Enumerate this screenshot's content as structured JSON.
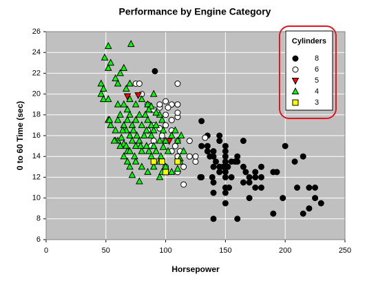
{
  "chart_data": {
    "type": "scatter",
    "title": "Performance by Engine Category",
    "x_label": "Horsepower",
    "y_label": "0 to 60 Time (sec)",
    "xlim": [
      0,
      250
    ],
    "xticks": [
      0,
      50,
      100,
      150,
      200,
      250
    ],
    "ylim": [
      6,
      26
    ],
    "yticks": [
      6,
      8,
      10,
      12,
      14,
      16,
      18,
      20,
      22,
      24,
      26
    ],
    "grid": true,
    "legend": "upper right",
    "legend_title": "Cylinders",
    "series": [
      {
        "name": "8",
        "color": "#000000",
        "marker": "circle",
        "x": [
          91,
          130,
          165,
          150,
          150,
          140,
          198,
          220,
          215,
          225,
          190,
          170,
          160,
          150,
          175,
          153,
          150,
          180,
          170,
          210,
          193,
          230,
          140,
          150,
          145,
          137,
          150,
          140,
          150,
          135,
          150,
          145,
          140,
          150,
          160,
          165,
          170,
          175,
          180,
          145,
          140,
          130,
          135,
          155,
          160,
          180,
          200,
          208,
          215,
          167,
          139,
          150,
          130,
          129,
          155,
          175,
          190,
          225,
          220,
          140,
          145,
          165,
          135,
          152,
          142,
          158,
          148
        ],
        "values": [
          22.2,
          12,
          11.5,
          11,
          12,
          10.5,
          10,
          9,
          8.5,
          10,
          8.5,
          10,
          8,
          9.5,
          11,
          11,
          10.5,
          11,
          11.5,
          11,
          12.5,
          9.5,
          8,
          12.5,
          13,
          14,
          13.5,
          14.5,
          14,
          15,
          15,
          16,
          14,
          13,
          13.5,
          13,
          12,
          12.5,
          13,
          12.5,
          13,
          15,
          14.5,
          12,
          14,
          12,
          15,
          13.5,
          14,
          12.5,
          12,
          14.5,
          17.4,
          12,
          13.5,
          12,
          12.5,
          11,
          11,
          11.5,
          15.5,
          15.5,
          16,
          13,
          13.5,
          13.5,
          13
        ]
      },
      {
        "name": "6",
        "color": "#ffffff",
        "marker": "circle",
        "x": [
          110,
          85,
          88,
          100,
          105,
          100,
          90,
          95,
          110,
          105,
          110,
          100,
          97,
          85,
          88,
          90,
          110,
          112,
          115,
          100,
          105,
          110,
          125,
          133,
          120,
          115,
          110,
          108,
          120,
          125,
          105,
          100,
          95,
          110,
          90,
          80,
          75,
          78,
          95,
          102
        ],
        "values": [
          21,
          19,
          18.5,
          18,
          19,
          19.3,
          18.5,
          18.7,
          19,
          16.5,
          15.5,
          15.5,
          16,
          16.5,
          15,
          15.5,
          14,
          14.5,
          13,
          17,
          17.5,
          17.8,
          13.5,
          15.8,
          15.5,
          11.3,
          12.5,
          15,
          14,
          14,
          14.5,
          13,
          16.7,
          18.2,
          17,
          20,
          21,
          21,
          19,
          18.7
        ]
      },
      {
        "name": "5",
        "color": "#ff0000",
        "marker": "triangle-down",
        "x": [
          68,
          77,
          103
        ],
        "values": [
          19.8,
          19.9,
          15.5
        ]
      },
      {
        "name": "4",
        "color": "#00ff00",
        "marker": "triangle-up",
        "x": [
          52,
          71,
          49,
          52,
          54,
          46,
          48,
          46,
          48,
          52,
          58,
          60,
          62,
          65,
          67,
          70,
          60,
          65,
          68,
          70,
          75,
          80,
          85,
          88,
          90,
          52,
          54,
          58,
          60,
          62,
          65,
          67,
          68,
          70,
          72,
          75,
          78,
          80,
          83,
          85,
          88,
          90,
          92,
          95,
          97,
          60,
          63,
          65,
          67,
          68,
          70,
          72,
          74,
          75,
          76,
          78,
          80,
          82,
          84,
          86,
          88,
          90,
          92,
          95,
          96,
          98,
          100,
          102,
          105,
          110,
          112,
          115,
          108,
          70,
          72,
          75,
          80,
          85,
          88,
          90,
          78,
          95,
          100,
          105,
          110,
          112,
          70,
          65,
          62,
          68,
          73,
          84,
          86,
          92,
          58,
          64,
          79,
          98,
          53,
          57,
          95,
          97,
          113
        ],
        "values": [
          24.6,
          24.8,
          23.5,
          22.5,
          23,
          21,
          20.5,
          20,
          19.5,
          19.5,
          21.5,
          21,
          22,
          22.5,
          20.5,
          21,
          19,
          19,
          18.5,
          19.5,
          19,
          19.5,
          19,
          18.8,
          20,
          17.5,
          17,
          16.5,
          17.5,
          18,
          17,
          16.5,
          17.5,
          18,
          17,
          17.5,
          18,
          17,
          18,
          17.5,
          17,
          16.5,
          17,
          18,
          17.5,
          15.5,
          15.8,
          15.2,
          15,
          14.5,
          16,
          15.5,
          14,
          15,
          16,
          15.5,
          14.5,
          16,
          15,
          14.5,
          16,
          15,
          14.5,
          15.5,
          14,
          14.9,
          15.5,
          14.5,
          16,
          15.5,
          13.8,
          14.5,
          16.5,
          13,
          12.2,
          13.5,
          13,
          12.5,
          14,
          13,
          11.6,
          13.5,
          13,
          12.5,
          12.8,
          13.5,
          14.5,
          14,
          15,
          13.5,
          16.5,
          16.5,
          18.5,
          18.2,
          15.5,
          16.5,
          15,
          16.5,
          17.5,
          15.5,
          12,
          12.5,
          16
        ]
      },
      {
        "name": "3",
        "color": "#ffff00",
        "marker": "square",
        "x": [
          90,
          97,
          100,
          110
        ],
        "values": [
          13.5,
          13.5,
          12.5,
          13.5
        ]
      }
    ]
  }
}
